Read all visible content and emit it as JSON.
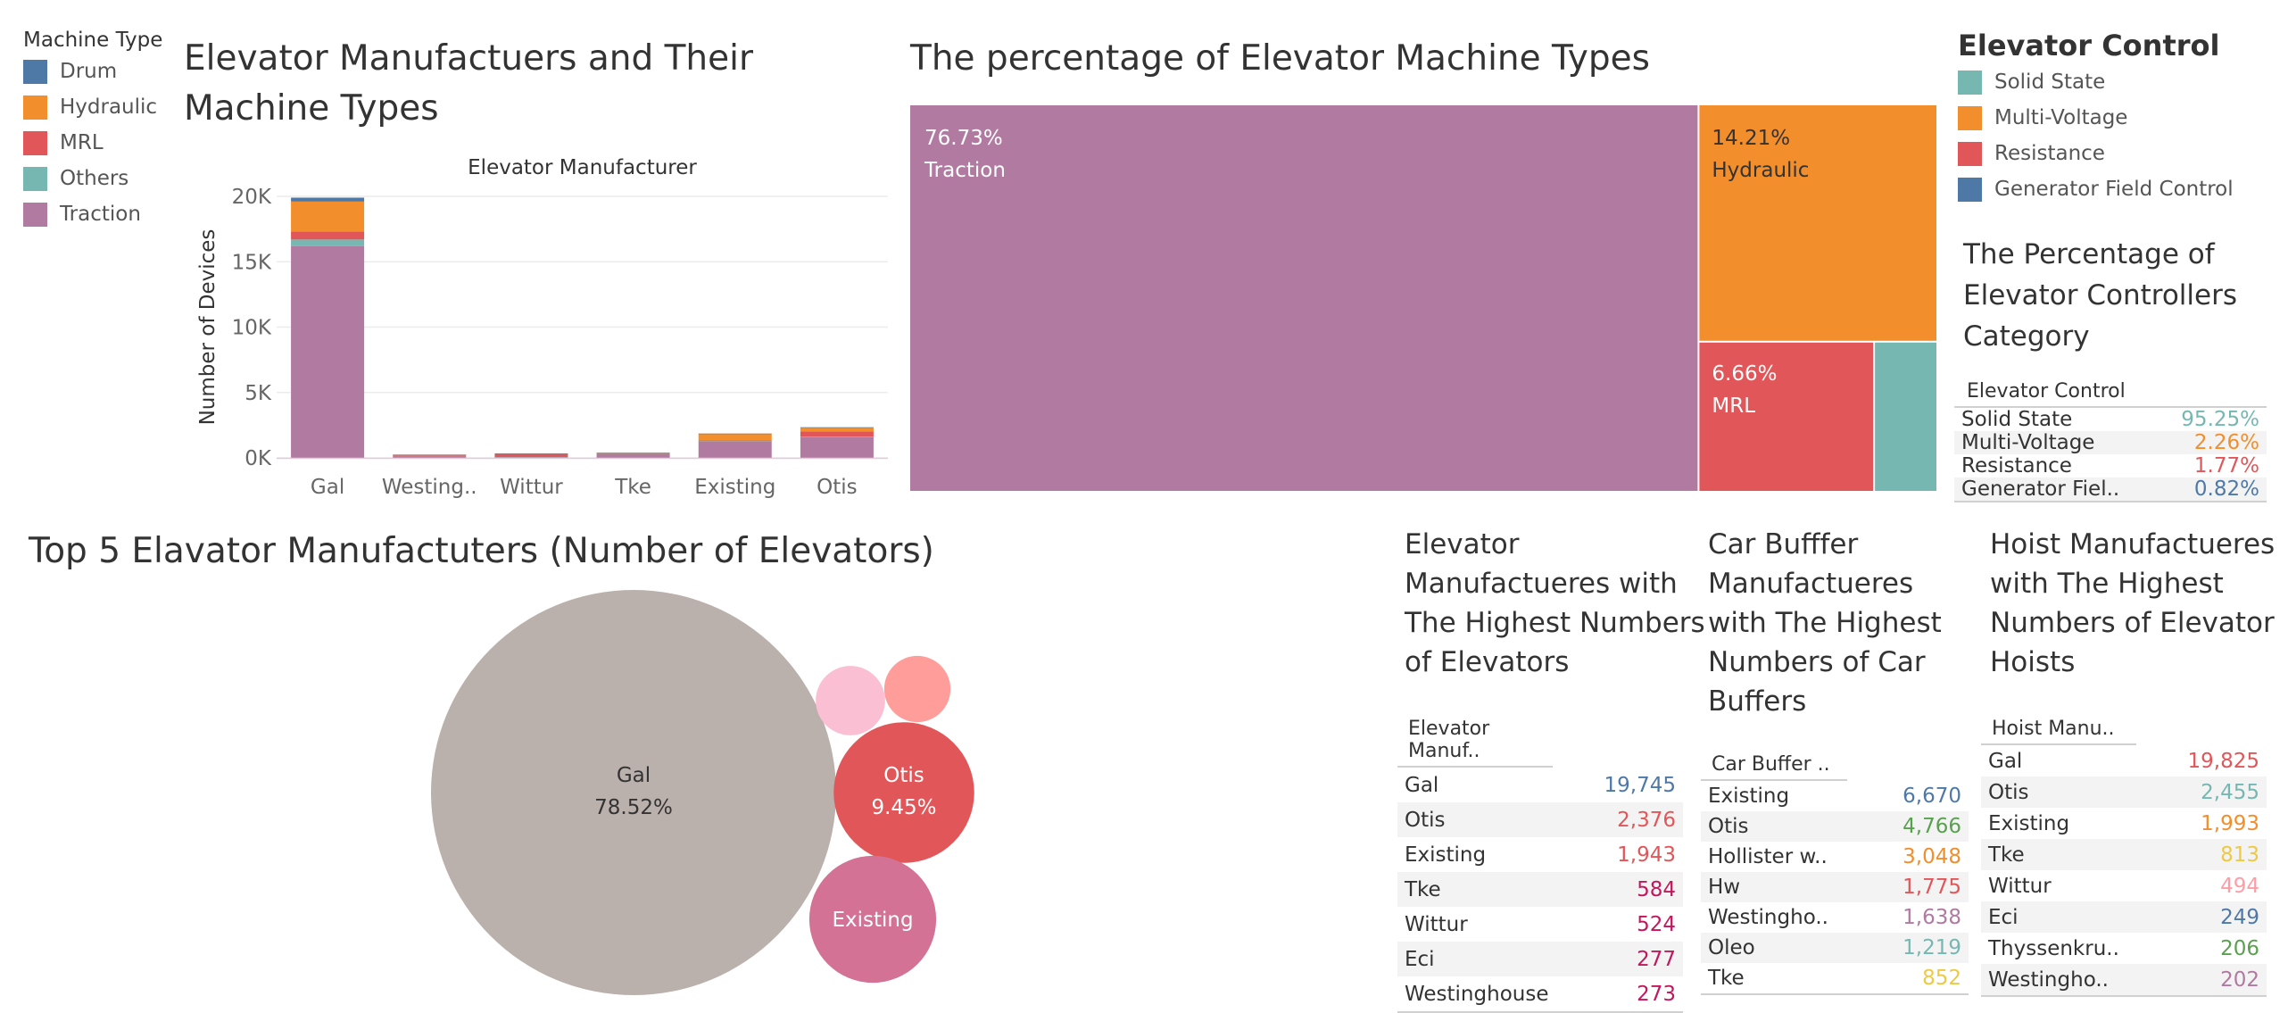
{
  "machine_legend": {
    "title": "Machine Type",
    "items": [
      {
        "label": "Drum",
        "color": "#4e79a7"
      },
      {
        "label": "Hydraulic",
        "color": "#f28e2b"
      },
      {
        "label": "MRL",
        "color": "#e15759"
      },
      {
        "label": "Others",
        "color": "#76b7b2"
      },
      {
        "label": "Traction",
        "color": "#b07aa1"
      }
    ]
  },
  "bar_title_line1": "Elevator Manufactuers and Their",
  "bar_title_line2": "Machine Types",
  "treemap_title": "The percentage of Elevator Machine Types",
  "control_legend": {
    "title": "Elevator Control",
    "items": [
      {
        "label": "Solid State",
        "color": "#76b7b2"
      },
      {
        "label": "Multi-Voltage",
        "color": "#f28e2b"
      },
      {
        "label": "Resistance",
        "color": "#e15759"
      },
      {
        "label": "Generator Field Control",
        "color": "#4e79a7"
      }
    ]
  },
  "controllers_title": [
    "The Percentage of",
    "Elevator Controllers",
    "Category"
  ],
  "bubble_title": "Top 5 Elavator Manufactuters (Number of Elevators)",
  "elev_table_title": [
    "Elevator",
    "Manufactueres with",
    "The Highest Numbers",
    "of Elevators"
  ],
  "buffer_table_title": [
    "Car Bufffer",
    "Manufactueres",
    "with The Highest",
    "Numbers of Car",
    "Buffers"
  ],
  "hoist_table_title": [
    "Hoist Manufactueres",
    "with The Highest",
    "Numbers of Elevator",
    "Hoists"
  ],
  "chart_data": [
    {
      "type": "bar",
      "title": "Elevator Manufactuers and Their Machine Types",
      "xlabel": "Elevator Manufacturer",
      "ylabel": "Number of Devices",
      "categories": [
        "Gal",
        "Westing..",
        "Wittur",
        "Tke",
        "Existing",
        "Otis"
      ],
      "yticks": [
        "0K",
        "5K",
        "10K",
        "15K",
        "20K"
      ],
      "ylim": [
        0,
        20000
      ],
      "stacked": true,
      "series": [
        {
          "name": "Traction",
          "color": "#b07aa1",
          "values": [
            16200,
            150,
            50,
            300,
            1250,
            1600
          ]
        },
        {
          "name": "Others",
          "color": "#76b7b2",
          "values": [
            500,
            10,
            10,
            10,
            20,
            30
          ]
        },
        {
          "name": "MRL",
          "color": "#e15759",
          "values": [
            600,
            50,
            250,
            50,
            80,
            400
          ]
        },
        {
          "name": "Hydraulic",
          "color": "#f28e2b",
          "values": [
            2300,
            30,
            20,
            30,
            500,
            300
          ]
        },
        {
          "name": "Drum",
          "color": "#4e79a7",
          "values": [
            300,
            10,
            5,
            5,
            10,
            10
          ]
        }
      ]
    },
    {
      "type": "treemap",
      "title": "The percentage of Elevator Machine Types",
      "items": [
        {
          "label": "Traction",
          "pct_label": "76.73%",
          "value": 76.73,
          "color": "#b07aa1"
        },
        {
          "label": "Hydraulic",
          "pct_label": "14.21%",
          "value": 14.21,
          "color": "#f28e2b"
        },
        {
          "label": "MRL",
          "pct_label": "6.66%",
          "value": 6.66,
          "color": "#e15759"
        },
        {
          "label": "",
          "pct_label": "",
          "value": 2.4,
          "color": "#76b7b2"
        }
      ]
    },
    {
      "type": "table",
      "title": "The Percentage of Elevator Controllers Category",
      "header": "Elevator Control",
      "rows": [
        {
          "label": "Solid State",
          "value": "95.25%",
          "color": "#76b7b2"
        },
        {
          "label": "Multi-Voltage",
          "value": "2.26%",
          "color": "#f28e2b"
        },
        {
          "label": "Resistance",
          "value": "1.77%",
          "color": "#e15759"
        },
        {
          "label": "Generator Fiel..",
          "value": "0.82%",
          "color": "#4e79a7"
        }
      ]
    },
    {
      "type": "bubble",
      "title": "Top 5 Elavator Manufactuters (Number of Elevators)",
      "items": [
        {
          "label": "Gal",
          "pct_label": "78.52%",
          "value": 78.52,
          "color": "#bab0ac"
        },
        {
          "label": "Otis",
          "pct_label": "9.45%",
          "value": 9.45,
          "color": "#e15759"
        },
        {
          "label": "Existing",
          "pct_label": "",
          "value": 7.7,
          "color": "#d37295"
        },
        {
          "label": "",
          "pct_label": "",
          "value": 2.3,
          "color": "#fabfd2"
        },
        {
          "label": "",
          "pct_label": "",
          "value": 2.1,
          "color": "#ff9d9a"
        }
      ]
    },
    {
      "type": "table",
      "title": "Elevator Manufactueres with The Highest Numbers of Elevators",
      "header": "Elevator Manuf..",
      "rows": [
        {
          "label": "Gal",
          "value": "19,745",
          "color": "#4e79a7"
        },
        {
          "label": "Otis",
          "value": "2,376",
          "color": "#e15759"
        },
        {
          "label": "Existing",
          "value": "1,943",
          "color": "#e15759"
        },
        {
          "label": "Tke",
          "value": "584",
          "color": "#c2185b"
        },
        {
          "label": "Wittur",
          "value": "524",
          "color": "#c2185b"
        },
        {
          "label": "Eci",
          "value": "277",
          "color": "#c2185b"
        },
        {
          "label": "Westinghouse",
          "value": "273",
          "color": "#c2185b"
        }
      ]
    },
    {
      "type": "table",
      "title": "Car Bufffer Manufactueres with The Highest Numbers of Car Buffers",
      "header": "Car Buffer ..",
      "rows": [
        {
          "label": "Existing",
          "value": "6,670",
          "color": "#4e79a7"
        },
        {
          "label": "Otis",
          "value": "4,766",
          "color": "#59a14f"
        },
        {
          "label": "Hollister w..",
          "value": "3,048",
          "color": "#f28e2b"
        },
        {
          "label": "Hw",
          "value": "1,775",
          "color": "#e15759"
        },
        {
          "label": "Westingho..",
          "value": "1,638",
          "color": "#b07aa1"
        },
        {
          "label": "Oleo",
          "value": "1,219",
          "color": "#76b7b2"
        },
        {
          "label": "Tke",
          "value": "852",
          "color": "#edc948"
        }
      ]
    },
    {
      "type": "table",
      "title": "Hoist Manufactueres with The Highest Numbers of Elevator Hoists",
      "header": "Hoist Manu..",
      "rows": [
        {
          "label": "Gal",
          "value": "19,825",
          "color": "#e15759"
        },
        {
          "label": "Otis",
          "value": "2,455",
          "color": "#76b7b2"
        },
        {
          "label": "Existing",
          "value": "1,993",
          "color": "#f28e2b"
        },
        {
          "label": "Tke",
          "value": "813",
          "color": "#edc948"
        },
        {
          "label": "Wittur",
          "value": "494",
          "color": "#ff9da7"
        },
        {
          "label": "Eci",
          "value": "249",
          "color": "#4e79a7"
        },
        {
          "label": "Thyssenkru..",
          "value": "206",
          "color": "#59a14f"
        },
        {
          "label": "Westingho..",
          "value": "202",
          "color": "#b07aa1"
        }
      ]
    }
  ]
}
